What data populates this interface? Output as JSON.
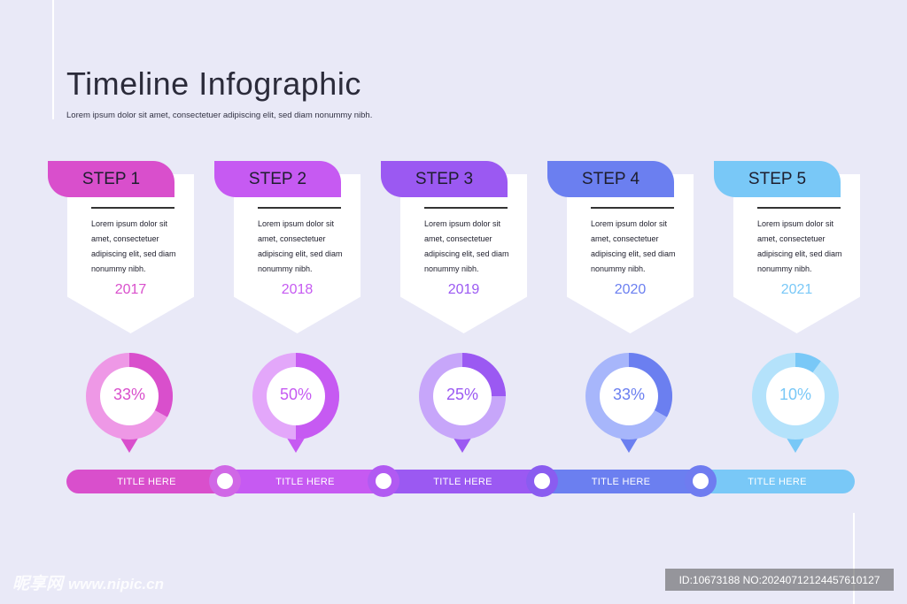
{
  "header": {
    "title": "Timeline Infographic",
    "subtitle": "Lorem ipsum dolor sit amet, consectetuer adipiscing elit, sed diam nonummy nibh."
  },
  "steps": [
    {
      "label": "STEP 1",
      "text": "Lorem ipsum dolor sit amet, consectetuer adipiscing elit, sed diam nonummy nibh.",
      "year": "2017",
      "percent": "33%",
      "value": 33,
      "title": "TITLE HERE",
      "color": "#d94fcc",
      "light": "#ee98e6"
    },
    {
      "label": "STEP 2",
      "text": "Lorem ipsum dolor sit amet, consectetuer adipiscing elit, sed diam nonummy nibh.",
      "year": "2018",
      "percent": "50%",
      "value": 50,
      "title": "TITLE HERE",
      "color": "#c65af2",
      "light": "#e3a7fa"
    },
    {
      "label": "STEP 3",
      "text": "Lorem ipsum dolor sit amet, consectetuer adipiscing elit, sed diam nonummy nibh.",
      "year": "2019",
      "percent": "25%",
      "value": 25,
      "title": "TITLE HERE",
      "color": "#9b59f2",
      "light": "#c7a6fa"
    },
    {
      "label": "STEP 4",
      "text": "Lorem ipsum dolor sit amet, consectetuer adipiscing elit, sed diam nonummy nibh.",
      "year": "2020",
      "percent": "33%",
      "value": 33,
      "title": "TITLE HERE",
      "color": "#6b7ff0",
      "light": "#a7b6fb"
    },
    {
      "label": "STEP 5",
      "text": "Lorem ipsum dolor sit amet, consectetuer adipiscing elit, sed diam nonummy nibh.",
      "year": "2021",
      "percent": "10%",
      "value": 10,
      "title": "TITLE HERE",
      "color": "#79c8f7",
      "light": "#b4e2fb"
    }
  ],
  "watermark": {
    "brand": "昵享网",
    "site": "www.nipic.cn",
    "id": "ID:10673188 NO:20240712124457610127"
  }
}
